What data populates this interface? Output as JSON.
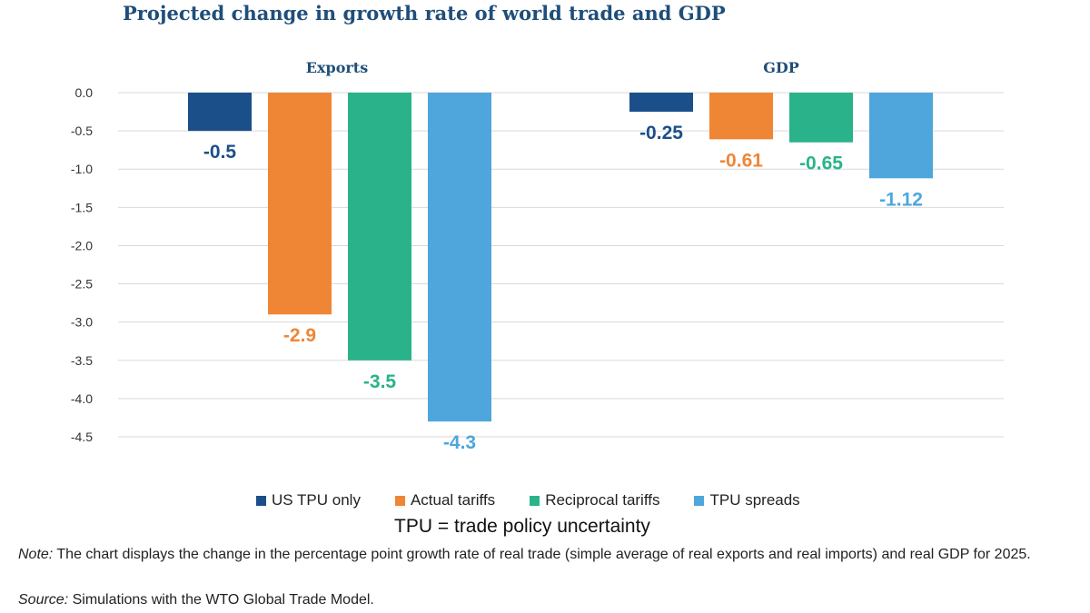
{
  "title": "Projected change in growth rate of world trade and GDP",
  "legend_label": "TPU = trade policy uncertainty",
  "note": {
    "label": "Note:",
    "text": " The chart displays the change in the percentage point growth rate of real trade (simple average of real exports and real imports) and real GDP for 2025."
  },
  "source": {
    "label": "Source:",
    "text": " Simulations with the WTO Global Trade Model."
  },
  "colors": {
    "US TPU only": "#1b4f8a",
    "Actual tariffs": "#ef8636",
    "Reciprocal tariffs": "#2ab38a",
    "TPU spreads": "#4ea6dc",
    "gridline": "#d9d9d9",
    "title": "#1f4e79"
  },
  "chart_data": {
    "type": "bar",
    "panels": [
      "Exports",
      "GDP"
    ],
    "ylim": [
      -4.5,
      0.0
    ],
    "yticks": [
      "0.0",
      "-0.5",
      "-1.0",
      "-1.5",
      "-2.0",
      "-2.5",
      "-3.0",
      "-3.5",
      "-4.0",
      "-4.5"
    ],
    "grid": true,
    "legend_position": "bottom",
    "series": [
      {
        "name": "US TPU only",
        "values": [
          -0.5,
          -0.25
        ],
        "labels": [
          "-0.5",
          "-0.25"
        ]
      },
      {
        "name": "Actual tariffs",
        "values": [
          -2.9,
          -0.61
        ],
        "labels": [
          "-2.9",
          "-0.61"
        ]
      },
      {
        "name": "Reciprocal tariffs",
        "values": [
          -3.5,
          -0.65
        ],
        "labels": [
          "-3.5",
          "-0.65"
        ]
      },
      {
        "name": "TPU spreads",
        "values": [
          -4.3,
          -1.12
        ],
        "labels": [
          "-4.3",
          "-1.12"
        ]
      }
    ]
  }
}
